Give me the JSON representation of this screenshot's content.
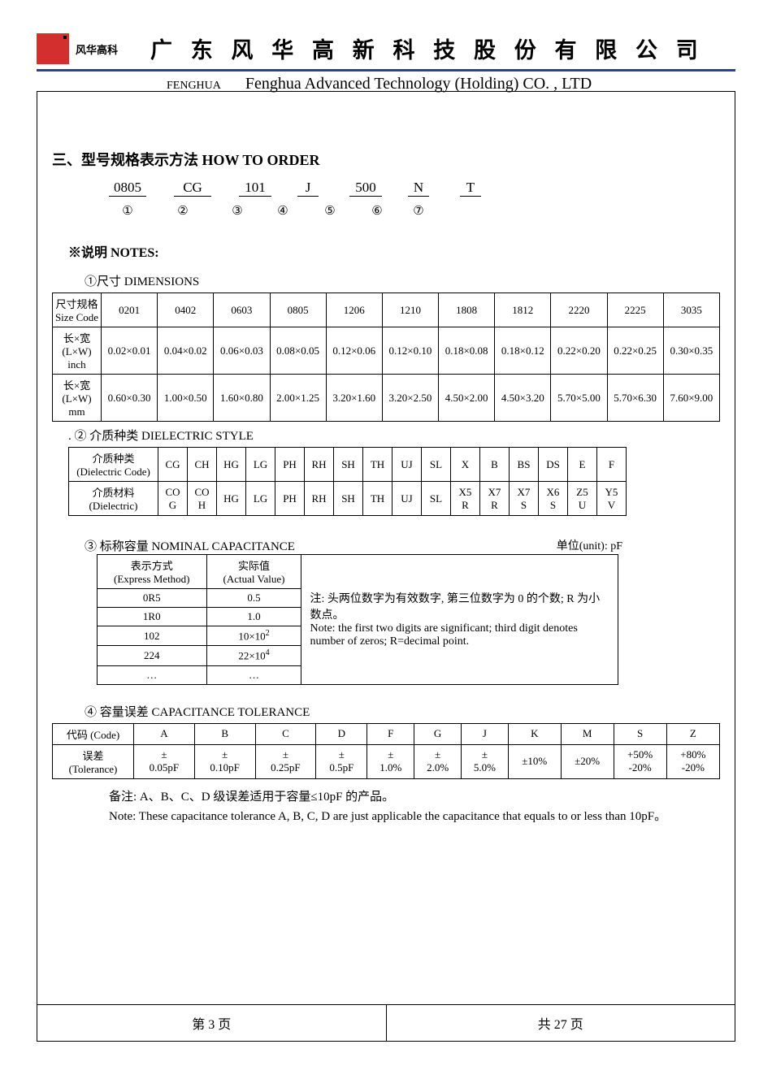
{
  "header": {
    "logo_text": "风华高科",
    "cn_title": "广 东 风 华 高 新 科 技 股 份 有 限 公 司",
    "fenghua": "FENGHUA",
    "en_title": "Fenghua Advanced Technology (Holding) CO. , LTD"
  },
  "section3_title": "三、型号规格表示方法    HOW TO ORDER",
  "order_segments": [
    "0805",
    "CG",
    "101",
    "J",
    "500",
    "N",
    "T"
  ],
  "order_circles": [
    "①",
    "②",
    "③",
    "④",
    "⑤",
    "⑥",
    "⑦"
  ],
  "notes_heading": "※说明 NOTES:",
  "dim_heading": "①尺寸   DIMENSIONS",
  "dim_table": {
    "rows": [
      [
        "尺寸规格\nSize Code",
        "0201",
        "0402",
        "0603",
        "0805",
        "1206",
        "1210",
        "1808",
        "1812",
        "2220",
        "2225",
        "3035"
      ],
      [
        "长×宽\n(L×W)\ninch",
        "0.02×0.01",
        "0.04×0.02",
        "0.06×0.03",
        "0.08×0.05",
        "0.12×0.06",
        "0.12×0.10",
        "0.18×0.08",
        "0.18×0.12",
        "0.22×0.20",
        "0.22×0.25",
        "0.30×0.35"
      ],
      [
        "长×宽\n(L×W)\nmm",
        "0.60×0.30",
        "1.00×0.50",
        "1.60×0.80",
        "2.00×1.25",
        "3.20×1.60",
        "3.20×2.50",
        "4.50×2.00",
        "4.50×3.20",
        "5.70×5.00",
        "5.70×6.30",
        "7.60×9.00"
      ]
    ]
  },
  "die_heading": ".  ②  介质种类 DIELECTRIC STYLE",
  "die_table": {
    "row1_label": "介质种类\n(Dielectric Code)",
    "row1": [
      "CG",
      "CH",
      "HG",
      "LG",
      "PH",
      "RH",
      "SH",
      "TH",
      "UJ",
      "SL",
      "X",
      "B",
      "BS",
      "DS",
      "E",
      "F"
    ],
    "row2_label": "介质材料\n(Dielectric)",
    "row2": [
      "COG",
      "COH",
      "HG",
      "LG",
      "PH",
      "RH",
      "SH",
      "TH",
      "UJ",
      "SL",
      "X5R",
      "X7R",
      "X7S",
      "X6S",
      "Z5U",
      "Y5V"
    ]
  },
  "cap_heading": "③  标称容量  NOMINAL CAPACITANCE",
  "cap_unit": "单位(unit):  pF",
  "express_table": {
    "headers": [
      "表示方式\n(Express Method)",
      "实际值\n(Actual Value)"
    ],
    "rows": [
      [
        "0R5",
        "0.5"
      ],
      [
        "1R0",
        "1.0"
      ],
      [
        "102",
        "10×10²"
      ],
      [
        "224",
        "22×10⁴"
      ],
      [
        "…",
        "…"
      ]
    ]
  },
  "cap_note_cn": "注: 头两位数字为有效数字, 第三位数字为 0 的个数; R 为小数点。",
  "cap_note_en": "Note: the first two digits are significant; third digit denotes number of zeros; R=decimal point.",
  "tol_heading": "④  容量误差 CAPACITANCE TOLERANCE",
  "tol_table": {
    "row1_label": "代码 (Code)",
    "row1": [
      "A",
      "B",
      "C",
      "D",
      "F",
      "G",
      "J",
      "K",
      "M",
      "S",
      "Z"
    ],
    "row2_label": "误差\n(Tolerance)",
    "row2": [
      "±\n0.05pF",
      "±\n0.10pF",
      "±\n0.25pF",
      "±\n0.5pF",
      "±\n1.0%",
      "±\n2.0%",
      "±\n5.0%",
      "±10%",
      "±20%",
      "+50%\n-20%",
      "+80%\n-20%"
    ]
  },
  "tol_remark_cn": "备注: A、B、C、D 级误差适用于容量≤10pF 的产品。",
  "tol_remark_en": "Note: These capacitance tolerance A, B, C, D are just applicable the capacitance that equals to or less than 10pF。",
  "footer": {
    "left": "第  3  页",
    "right": "共  27  页"
  },
  "segment_widths": [
    "46px",
    "46px",
    "40px",
    "26px",
    "40px",
    "26px",
    "26px"
  ],
  "segment_gaps": [
    0,
    24,
    24,
    22,
    28,
    22,
    28
  ]
}
